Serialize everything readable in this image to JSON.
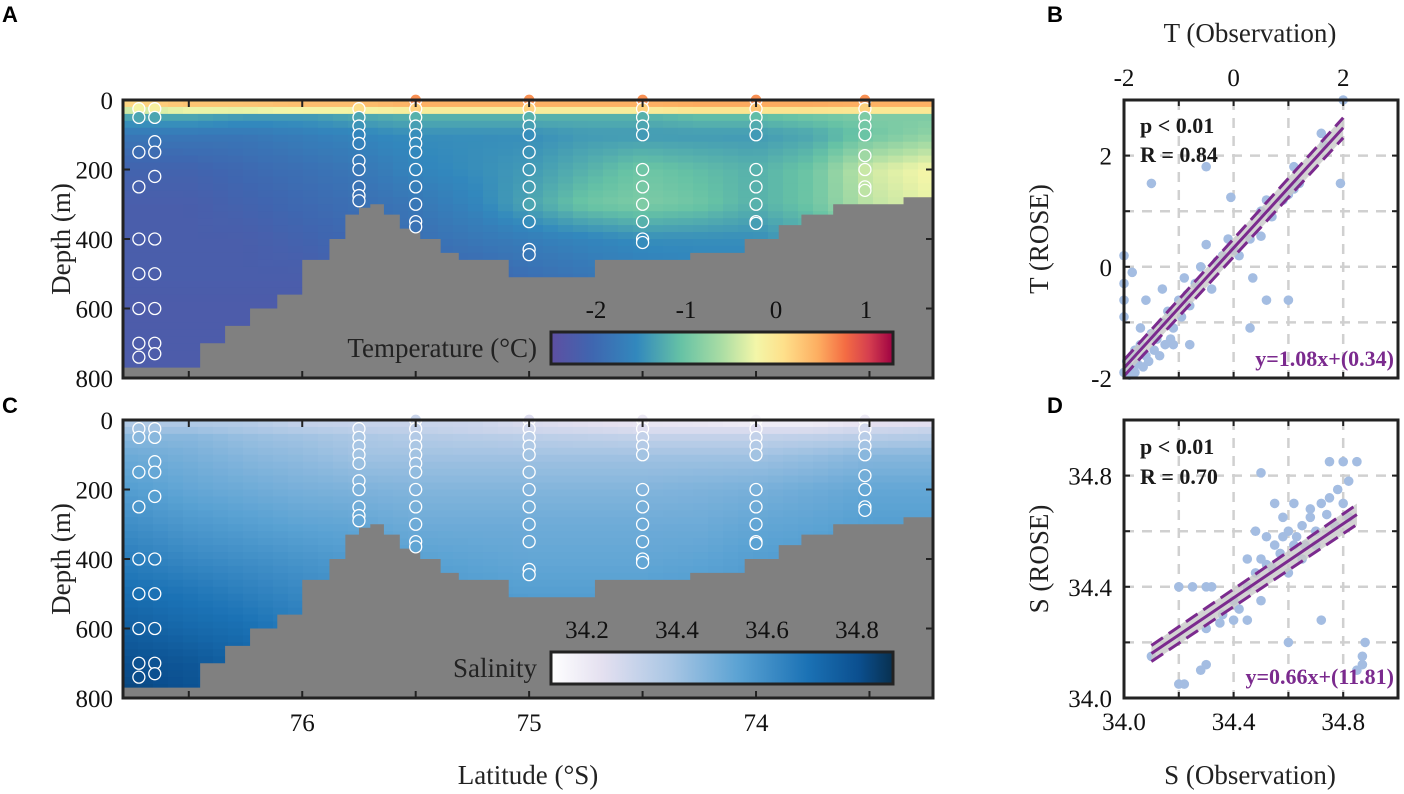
{
  "panel_labels": {
    "a": "A",
    "b": "B",
    "c": "C",
    "d": "D"
  },
  "colors": {
    "bathymetry": "#808080",
    "scatter": "#a4bde2",
    "fit": "#7b2a8e",
    "ci": "#c8c8c8"
  },
  "chart_data": [
    {
      "id": "A",
      "type": "heatmap",
      "field": "temperature",
      "ylabel": "Depth (m)",
      "xlabel": "",
      "xlim": [
        76.79,
        73.22
      ],
      "ylim": [
        800,
        0
      ],
      "yticks": [
        0,
        200,
        400,
        600,
        800
      ],
      "xticks": [
        76,
        75,
        74
      ],
      "colorbar": {
        "label": "Temperature (°C)",
        "range": [
          -2.5,
          1.3
        ],
        "ticks": [
          "-2",
          "-1",
          "0",
          "1"
        ],
        "tick_values": [
          -2,
          -1,
          0,
          1
        ]
      },
      "lats": [
        76.75,
        76.5,
        76.25,
        76.0,
        75.75,
        75.5,
        75.25,
        75.0,
        74.75,
        74.5,
        74.25,
        74.0,
        73.75,
        73.5,
        73.25
      ],
      "depths": [
        0,
        25,
        50,
        100,
        200,
        300,
        400,
        500,
        600,
        700,
        800
      ],
      "values": [
        [
          0.4,
          0.5,
          0.5,
          0.5,
          0.5,
          0.6,
          0.6,
          0.6,
          0.6,
          0.6,
          0.6,
          0.6,
          0.6,
          0.6,
          0.6
        ],
        [
          -0.2,
          0,
          0,
          0.1,
          0.1,
          0.2,
          0.2,
          0.2,
          0.2,
          0.2,
          0.3,
          0.3,
          0.3,
          0.2,
          0.2
        ],
        [
          -1.3,
          -1.3,
          -1.4,
          -1.4,
          -1.3,
          -1.2,
          -1.2,
          -1.2,
          -1.2,
          -1.2,
          -1.1,
          -1.1,
          -1.0,
          -0.9,
          -0.9
        ],
        [
          -1.8,
          -1.8,
          -1.8,
          -1.7,
          -1.6,
          -1.5,
          -1.5,
          -1.5,
          -1.4,
          -1.4,
          -1.4,
          -1.4,
          -1.3,
          -1.0,
          -0.8
        ],
        [
          -2.1,
          -2.1,
          -2.0,
          -1.9,
          -1.8,
          -1.6,
          -1.5,
          -1.4,
          -1.2,
          -1.0,
          -1.1,
          -1.2,
          -1.0,
          -0.4,
          -0.2
        ],
        [
          -2.2,
          -2.2,
          -2.1,
          -2.0,
          -1.9,
          -1.8,
          -1.6,
          -1.3,
          -1.0,
          -0.9,
          -1.0,
          -1.2,
          -1.0,
          -0.5,
          -0.3
        ],
        [
          -2.2,
          -2.2,
          -2.2,
          -2.1,
          -2.0,
          -1.9,
          -1.8,
          -1.7,
          -1.6,
          -1.5,
          -1.5,
          -1.5,
          -1.3,
          -1.0,
          -0.8
        ],
        [
          -2.2,
          -2.2,
          -2.2,
          -2.2,
          -2.1,
          -2.0,
          -2.0,
          -1.9,
          -1.8,
          -1.7,
          -1.6,
          -1.6,
          -1.5,
          -1.3,
          -1.2
        ],
        [
          -2.25,
          -2.25,
          -2.25,
          -2.25,
          -2.2,
          -2.2,
          -2.1,
          -2.0,
          -2.0,
          -1.9,
          -1.8,
          -1.8,
          -1.7,
          -1.6,
          -1.5
        ],
        [
          -2.25,
          -2.25,
          -2.25,
          -2.25,
          -2.25,
          -2.2,
          -2.2,
          -2.1,
          -2.1,
          -2.0,
          -2.0,
          -2.0,
          -1.9,
          -1.8,
          -1.8
        ],
        [
          -2.25,
          -2.25,
          -2.25,
          -2.25,
          -2.25,
          -2.25,
          -2.2,
          -2.2,
          -2.2,
          -2.1,
          -2.1,
          -2.1,
          -2.0,
          -2.0,
          -2.0
        ]
      ]
    },
    {
      "id": "C",
      "type": "heatmap",
      "field": "salinity",
      "ylabel": "Depth (m)",
      "xlabel": "Latitude (°S)",
      "xlim": [
        76.79,
        73.22
      ],
      "ylim": [
        800,
        0
      ],
      "yticks": [
        0,
        200,
        400,
        600,
        800
      ],
      "xticks": [
        76,
        75,
        74
      ],
      "colorbar": {
        "label": "Salinity",
        "range": [
          34.12,
          34.88
        ],
        "ticks": [
          "34.2",
          "34.4",
          "34.6",
          "34.8"
        ],
        "tick_values": [
          34.2,
          34.4,
          34.6,
          34.8
        ]
      },
      "lats": [
        76.75,
        76.5,
        76.25,
        76.0,
        75.75,
        75.5,
        75.25,
        75.0,
        74.75,
        74.5,
        74.25,
        74.0,
        73.75,
        73.5,
        73.25
      ],
      "depths": [
        0,
        25,
        50,
        100,
        200,
        300,
        400,
        500,
        600,
        700,
        800
      ],
      "values": [
        [
          34.35,
          34.35,
          34.35,
          34.3,
          34.3,
          34.3,
          34.3,
          34.25,
          34.22,
          34.2,
          34.18,
          34.15,
          34.15,
          34.2,
          34.2
        ],
        [
          34.4,
          34.4,
          34.38,
          34.35,
          34.33,
          34.32,
          34.3,
          34.28,
          34.27,
          34.25,
          34.25,
          34.25,
          34.25,
          34.28,
          34.3
        ],
        [
          34.45,
          34.45,
          34.42,
          34.4,
          34.38,
          34.36,
          34.35,
          34.34,
          34.33,
          34.32,
          34.32,
          34.32,
          34.33,
          34.35,
          34.36
        ],
        [
          34.5,
          34.48,
          34.45,
          34.43,
          34.4,
          34.4,
          34.4,
          34.4,
          34.4,
          34.4,
          34.4,
          34.4,
          34.42,
          34.45,
          34.45
        ],
        [
          34.55,
          34.52,
          34.5,
          34.48,
          34.47,
          34.46,
          34.46,
          34.46,
          34.46,
          34.46,
          34.47,
          34.48,
          34.5,
          34.52,
          34.52
        ],
        [
          34.6,
          34.57,
          34.55,
          34.53,
          34.52,
          34.5,
          34.5,
          34.5,
          34.5,
          34.5,
          34.5,
          34.52,
          34.53,
          34.55,
          34.55
        ],
        [
          34.65,
          34.62,
          34.6,
          34.58,
          34.56,
          34.54,
          34.53,
          34.52,
          34.52,
          34.52,
          34.53,
          34.55,
          34.56,
          34.58,
          34.58
        ],
        [
          34.7,
          34.68,
          34.65,
          34.62,
          34.6,
          34.58,
          34.56,
          34.55,
          34.55,
          34.55,
          34.56,
          34.57,
          34.58,
          34.6,
          34.6
        ],
        [
          34.75,
          34.72,
          34.7,
          34.66,
          34.63,
          34.6,
          34.6,
          34.6,
          34.6,
          34.6,
          34.6,
          34.6,
          34.6,
          34.62,
          34.62
        ],
        [
          34.8,
          34.78,
          34.74,
          34.7,
          34.66,
          34.63,
          34.62,
          34.62,
          34.62,
          34.62,
          34.62,
          34.62,
          34.62,
          34.64,
          34.64
        ],
        [
          34.83,
          34.8,
          34.77,
          34.72,
          34.68,
          34.65,
          34.64,
          34.64,
          34.64,
          34.64,
          34.64,
          34.64,
          34.64,
          34.65,
          34.65
        ]
      ]
    },
    {
      "id": "B",
      "type": "scatter",
      "xlabel": "T (Observation)",
      "ylabel": "T (ROSE)",
      "xlim": [
        -2,
        3
      ],
      "ylim": [
        -2,
        3
      ],
      "xticks": [
        -2,
        0,
        2
      ],
      "yticks": [
        -2,
        0,
        2
      ],
      "x_axis": "top",
      "grid": true,
      "p_text": "p < 0.01",
      "r_text": "R = 0.84",
      "equation": "y=1.08x+(0.34)",
      "fit_line": [
        [
          -2,
          -1.82
        ],
        [
          2,
          2.5
        ]
      ],
      "points": [
        [
          -2,
          -1.9
        ],
        [
          -1.95,
          -1.7
        ],
        [
          -1.9,
          -1.8
        ],
        [
          -1.85,
          -1.6
        ],
        [
          -1.8,
          -1.5
        ],
        [
          -1.75,
          -1.75
        ],
        [
          -1.7,
          -1.4
        ],
        [
          -1.6,
          -1.6
        ],
        [
          -1.5,
          -1.2
        ],
        [
          -1.45,
          -1.5
        ],
        [
          -1.4,
          -1.3
        ],
        [
          -1.3,
          -1.0
        ],
        [
          -1.25,
          -1.4
        ],
        [
          -1.2,
          -0.8
        ],
        [
          -1.1,
          -1.1
        ],
        [
          -1.0,
          -0.6
        ],
        [
          -0.95,
          -0.9
        ],
        [
          -0.9,
          -0.2
        ],
        [
          -0.85,
          -0.5
        ],
        [
          -0.8,
          -0.7
        ],
        [
          -0.7,
          -0.3
        ],
        [
          -0.6,
          0
        ],
        [
          -0.5,
          0.4
        ],
        [
          -0.4,
          -0.4
        ],
        [
          -0.3,
          0.1
        ],
        [
          -0.2,
          0.2
        ],
        [
          -0.1,
          0.5
        ],
        [
          0,
          0.3
        ],
        [
          0.1,
          0.2
        ],
        [
          -2,
          0.2
        ],
        [
          -2,
          -0.3
        ],
        [
          -2,
          -0.6
        ],
        [
          -2,
          -0.9
        ],
        [
          -1.5,
          1.5
        ],
        [
          -0.5,
          1.8
        ],
        [
          -0.05,
          1.25
        ],
        [
          0.35,
          -0.2
        ],
        [
          0.6,
          -0.6
        ],
        [
          1.0,
          -0.6
        ],
        [
          0.3,
          -1.1
        ],
        [
          -1.1,
          -1.4
        ],
        [
          -0.8,
          -1.4
        ],
        [
          0.5,
          1.0
        ],
        [
          0.6,
          1.2
        ],
        [
          0.7,
          0.9
        ],
        [
          0.9,
          1.2
        ],
        [
          1.1,
          1.4
        ],
        [
          1.2,
          1.5
        ],
        [
          1.1,
          1.8
        ],
        [
          1.0,
          1.3
        ],
        [
          1.65,
          2.2
        ],
        [
          1.6,
          2.4
        ],
        [
          1.95,
          1.5
        ],
        [
          2.0,
          3.0
        ],
        [
          0.5,
          0.55
        ],
        [
          0.3,
          0.5
        ],
        [
          -1.6,
          -0.6
        ],
        [
          -1.85,
          -0.1
        ],
        [
          -1.7,
          -1.1
        ],
        [
          -1.3,
          -0.4
        ],
        [
          -1.9,
          -1.95
        ],
        [
          -1.8,
          -1.9
        ],
        [
          -1.65,
          -1.8
        ],
        [
          -1.55,
          -1.7
        ],
        [
          -1.35,
          -1.6
        ],
        [
          -1.15,
          -1.3
        ]
      ]
    },
    {
      "id": "D",
      "type": "scatter",
      "xlabel": "S (Observation)",
      "ylabel": "S (ROSE)",
      "xlim": [
        34.0,
        35.0
      ],
      "ylim": [
        34.0,
        35.0
      ],
      "xticks": [
        34.0,
        34.4,
        34.8
      ],
      "yticks": [
        34.0,
        34.4,
        34.8
      ],
      "x_axis": "bottom",
      "grid": true,
      "p_text": "p < 0.01",
      "r_text": "R = 0.70",
      "equation": "y=0.66x+(11.81)",
      "fit_line": [
        [
          34.1,
          34.16
        ],
        [
          34.85,
          34.66
        ]
      ],
      "points": [
        [
          34.1,
          34.15
        ],
        [
          34.2,
          34.05
        ],
        [
          34.22,
          34.05
        ],
        [
          34.2,
          34.4
        ],
        [
          34.25,
          34.4
        ],
        [
          34.3,
          34.4
        ],
        [
          34.32,
          34.4
        ],
        [
          34.3,
          34.25
        ],
        [
          34.35,
          34.27
        ],
        [
          34.28,
          34.1
        ],
        [
          34.3,
          34.12
        ],
        [
          34.36,
          34.3
        ],
        [
          34.4,
          34.35
        ],
        [
          34.42,
          34.32
        ],
        [
          34.45,
          34.4
        ],
        [
          34.48,
          34.45
        ],
        [
          34.5,
          34.5
        ],
        [
          34.52,
          34.48
        ],
        [
          34.55,
          34.55
        ],
        [
          34.58,
          34.58
        ],
        [
          34.6,
          34.6
        ],
        [
          34.62,
          34.55
        ],
        [
          34.65,
          34.62
        ],
        [
          34.68,
          34.65
        ],
        [
          34.7,
          34.6
        ],
        [
          34.72,
          34.7
        ],
        [
          34.75,
          34.72
        ],
        [
          34.78,
          34.75
        ],
        [
          34.8,
          34.7
        ],
        [
          34.82,
          34.78
        ],
        [
          34.85,
          34.85
        ],
        [
          34.8,
          34.85
        ],
        [
          34.75,
          34.85
        ],
        [
          34.6,
          34.2
        ],
        [
          34.5,
          34.81
        ],
        [
          34.72,
          34.28
        ],
        [
          34.88,
          34.2
        ],
        [
          34.87,
          34.15
        ],
        [
          34.87,
          34.12
        ],
        [
          34.85,
          34.1
        ],
        [
          34.55,
          34.7
        ],
        [
          34.6,
          34.45
        ],
        [
          34.52,
          34.58
        ],
        [
          34.5,
          34.35
        ],
        [
          34.45,
          34.5
        ],
        [
          34.65,
          34.5
        ],
        [
          34.7,
          34.55
        ],
        [
          34.68,
          34.68
        ],
        [
          34.58,
          34.65
        ],
        [
          34.62,
          34.7
        ],
        [
          34.48,
          34.6
        ],
        [
          34.4,
          34.28
        ],
        [
          34.45,
          34.28
        ],
        [
          34.77,
          34.62
        ],
        [
          34.82,
          34.65
        ],
        [
          34.57,
          34.52
        ],
        [
          34.63,
          34.58
        ],
        [
          34.66,
          34.55
        ],
        [
          34.54,
          34.47
        ],
        [
          34.74,
          34.66
        ]
      ]
    }
  ],
  "bathymetry": [
    [
      76.79,
      770
    ],
    [
      76.55,
      770
    ],
    [
      76.45,
      700
    ],
    [
      76.34,
      650
    ],
    [
      76.23,
      600
    ],
    [
      76.11,
      560
    ],
    [
      76.0,
      460
    ],
    [
      75.88,
      400
    ],
    [
      75.81,
      330
    ],
    [
      75.75,
      310
    ],
    [
      75.7,
      300
    ],
    [
      75.64,
      330
    ],
    [
      75.57,
      370
    ],
    [
      75.48,
      400
    ],
    [
      75.39,
      440
    ],
    [
      75.31,
      460
    ],
    [
      75.09,
      510
    ],
    [
      74.71,
      460
    ],
    [
      74.29,
      440
    ],
    [
      74.05,
      400
    ],
    [
      73.9,
      360
    ],
    [
      73.8,
      330
    ],
    [
      73.66,
      300
    ],
    [
      73.35,
      280
    ],
    [
      73.22,
      280
    ]
  ],
  "stations": [
    {
      "lat": 76.72,
      "depths": [
        25,
        50,
        150,
        250,
        400,
        500,
        600,
        700,
        740
      ]
    },
    {
      "lat": 76.65,
      "depths": [
        25,
        50,
        120,
        150,
        220,
        400,
        500,
        600,
        700,
        730
      ]
    },
    {
      "lat": 75.75,
      "depths": [
        25,
        50,
        75,
        100,
        125,
        175,
        200,
        250,
        275,
        290
      ]
    },
    {
      "lat": 75.5,
      "depths": [
        0,
        25,
        50,
        75,
        100,
        125,
        150,
        200,
        250,
        300,
        350,
        365
      ]
    },
    {
      "lat": 75.0,
      "depths": [
        0,
        25,
        50,
        75,
        100,
        150,
        200,
        250,
        300,
        350,
        430,
        445
      ]
    },
    {
      "lat": 74.5,
      "depths": [
        0,
        25,
        50,
        75,
        100,
        200,
        250,
        300,
        350,
        400,
        410
      ]
    },
    {
      "lat": 74.0,
      "depths": [
        0,
        25,
        50,
        75,
        100,
        200,
        250,
        300,
        350,
        355
      ]
    },
    {
      "lat": 73.52,
      "depths": [
        0,
        25,
        50,
        75,
        100,
        160,
        200,
        250,
        260
      ]
    }
  ]
}
